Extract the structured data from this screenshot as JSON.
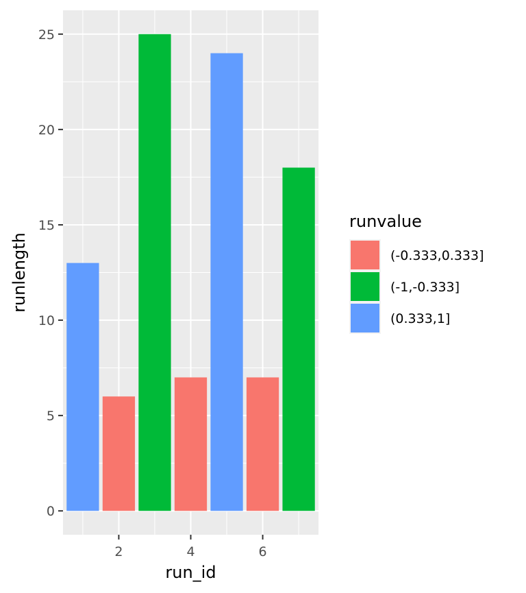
{
  "chart_data": {
    "type": "bar",
    "xlabel": "run_id",
    "ylabel": "runlength",
    "xlim": [
      0.45,
      7.55
    ],
    "ylim": [
      -1.25,
      26.25
    ],
    "x_ticks": [
      2,
      4,
      6
    ],
    "y_ticks": [
      0,
      5,
      10,
      15,
      20,
      25
    ],
    "grid": true,
    "legend": {
      "title": "runvalue",
      "position": "right",
      "entries": [
        {
          "label": "(-0.333,0.333]",
          "color": "#F8766D"
        },
        {
          "label": "(-1,-0.333]",
          "color": "#00BA38"
        },
        {
          "label": "(0.333,1]",
          "color": "#619CFF"
        }
      ]
    },
    "bars": [
      {
        "x": 1,
        "value": 13,
        "group": "(0.333,1]"
      },
      {
        "x": 2,
        "value": 6,
        "group": "(-0.333,0.333]"
      },
      {
        "x": 3,
        "value": 25,
        "group": "(-1,-0.333]"
      },
      {
        "x": 4,
        "value": 7,
        "group": "(-0.333,0.333]"
      },
      {
        "x": 5,
        "value": 24,
        "group": "(0.333,1]"
      },
      {
        "x": 6,
        "value": 7,
        "group": "(-0.333,0.333]"
      },
      {
        "x": 7,
        "value": 18,
        "group": "(-1,-0.333]"
      }
    ]
  }
}
